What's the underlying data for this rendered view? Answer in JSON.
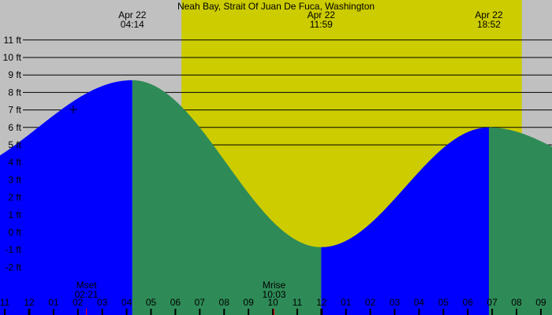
{
  "chart_data": {
    "type": "area",
    "title": "Neah Bay, Strait Of Juan De Fuca, Washington",
    "ylabel": "",
    "xlabel": "",
    "y_unit": "ft",
    "ylim": [
      -2.5,
      13.3
    ],
    "y_ticks": [
      11,
      10,
      9,
      8,
      7,
      6,
      5,
      4,
      3,
      2,
      1,
      0,
      -1,
      -2
    ],
    "y_tick_labels": [
      "11 ft",
      "10 ft",
      "9 ft",
      "8 ft",
      "7 ft",
      "6 ft",
      "5 ft",
      "4 ft",
      "3 ft",
      "2 ft",
      "1 ft",
      "0 ft",
      "-1 ft",
      "-2 ft"
    ],
    "x_tick_labels": [
      "11",
      "12",
      "01",
      "02",
      "03",
      "04",
      "05",
      "06",
      "07",
      "08",
      "09",
      "10",
      "11",
      "12",
      "01",
      "02",
      "03",
      "04",
      "05",
      "06",
      "07",
      "08",
      "09"
    ],
    "grid": true,
    "tide_extremes": [
      {
        "date": "Apr 22",
        "time": "04:14",
        "type": "high",
        "height_ft": 8.7
      },
      {
        "date": "Apr 22",
        "time": "11:59",
        "type": "low",
        "height_ft": -0.85
      },
      {
        "date": "Apr 22",
        "time": "18:52",
        "type": "high",
        "height_ft": 6.0
      }
    ],
    "moon_events": [
      {
        "label": "Mset",
        "time": "02:21"
      },
      {
        "label": "Mrise",
        "time": "10:03"
      }
    ],
    "daylight": {
      "start": "06:15",
      "end": "20:13"
    },
    "colors": {
      "night": "#c0c0c0",
      "day": "#cccc00",
      "rising": "#0000ff",
      "falling": "#2e8b57",
      "moon_tick": "#ff0000"
    }
  }
}
